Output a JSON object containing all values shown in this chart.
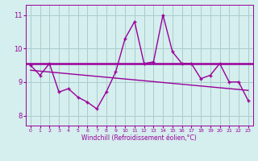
{
  "x": [
    0,
    1,
    2,
    3,
    4,
    5,
    6,
    7,
    8,
    9,
    10,
    11,
    12,
    13,
    14,
    15,
    16,
    17,
    18,
    19,
    20,
    21,
    22,
    23
  ],
  "y_data": [
    9.5,
    9.2,
    9.55,
    8.7,
    8.8,
    8.55,
    8.4,
    8.2,
    8.7,
    9.3,
    10.3,
    10.8,
    9.55,
    9.6,
    11.0,
    9.9,
    9.55,
    9.55,
    9.1,
    9.2,
    9.55,
    9.0,
    9.0,
    8.45
  ],
  "y_hline": 9.55,
  "y_trend_start": 9.35,
  "y_trend_end": 8.75,
  "line_color": "#990099",
  "bg_color": "#d5eeee",
  "grid_color": "#aacccc",
  "xlabel": "Windchill (Refroidissement éolien,°C)",
  "xlim": [
    -0.5,
    23.5
  ],
  "ylim": [
    7.7,
    11.3
  ],
  "yticks": [
    8,
    9,
    10,
    11
  ],
  "xticks": [
    0,
    1,
    2,
    3,
    4,
    5,
    6,
    7,
    8,
    9,
    10,
    11,
    12,
    13,
    14,
    15,
    16,
    17,
    18,
    19,
    20,
    21,
    22,
    23
  ]
}
